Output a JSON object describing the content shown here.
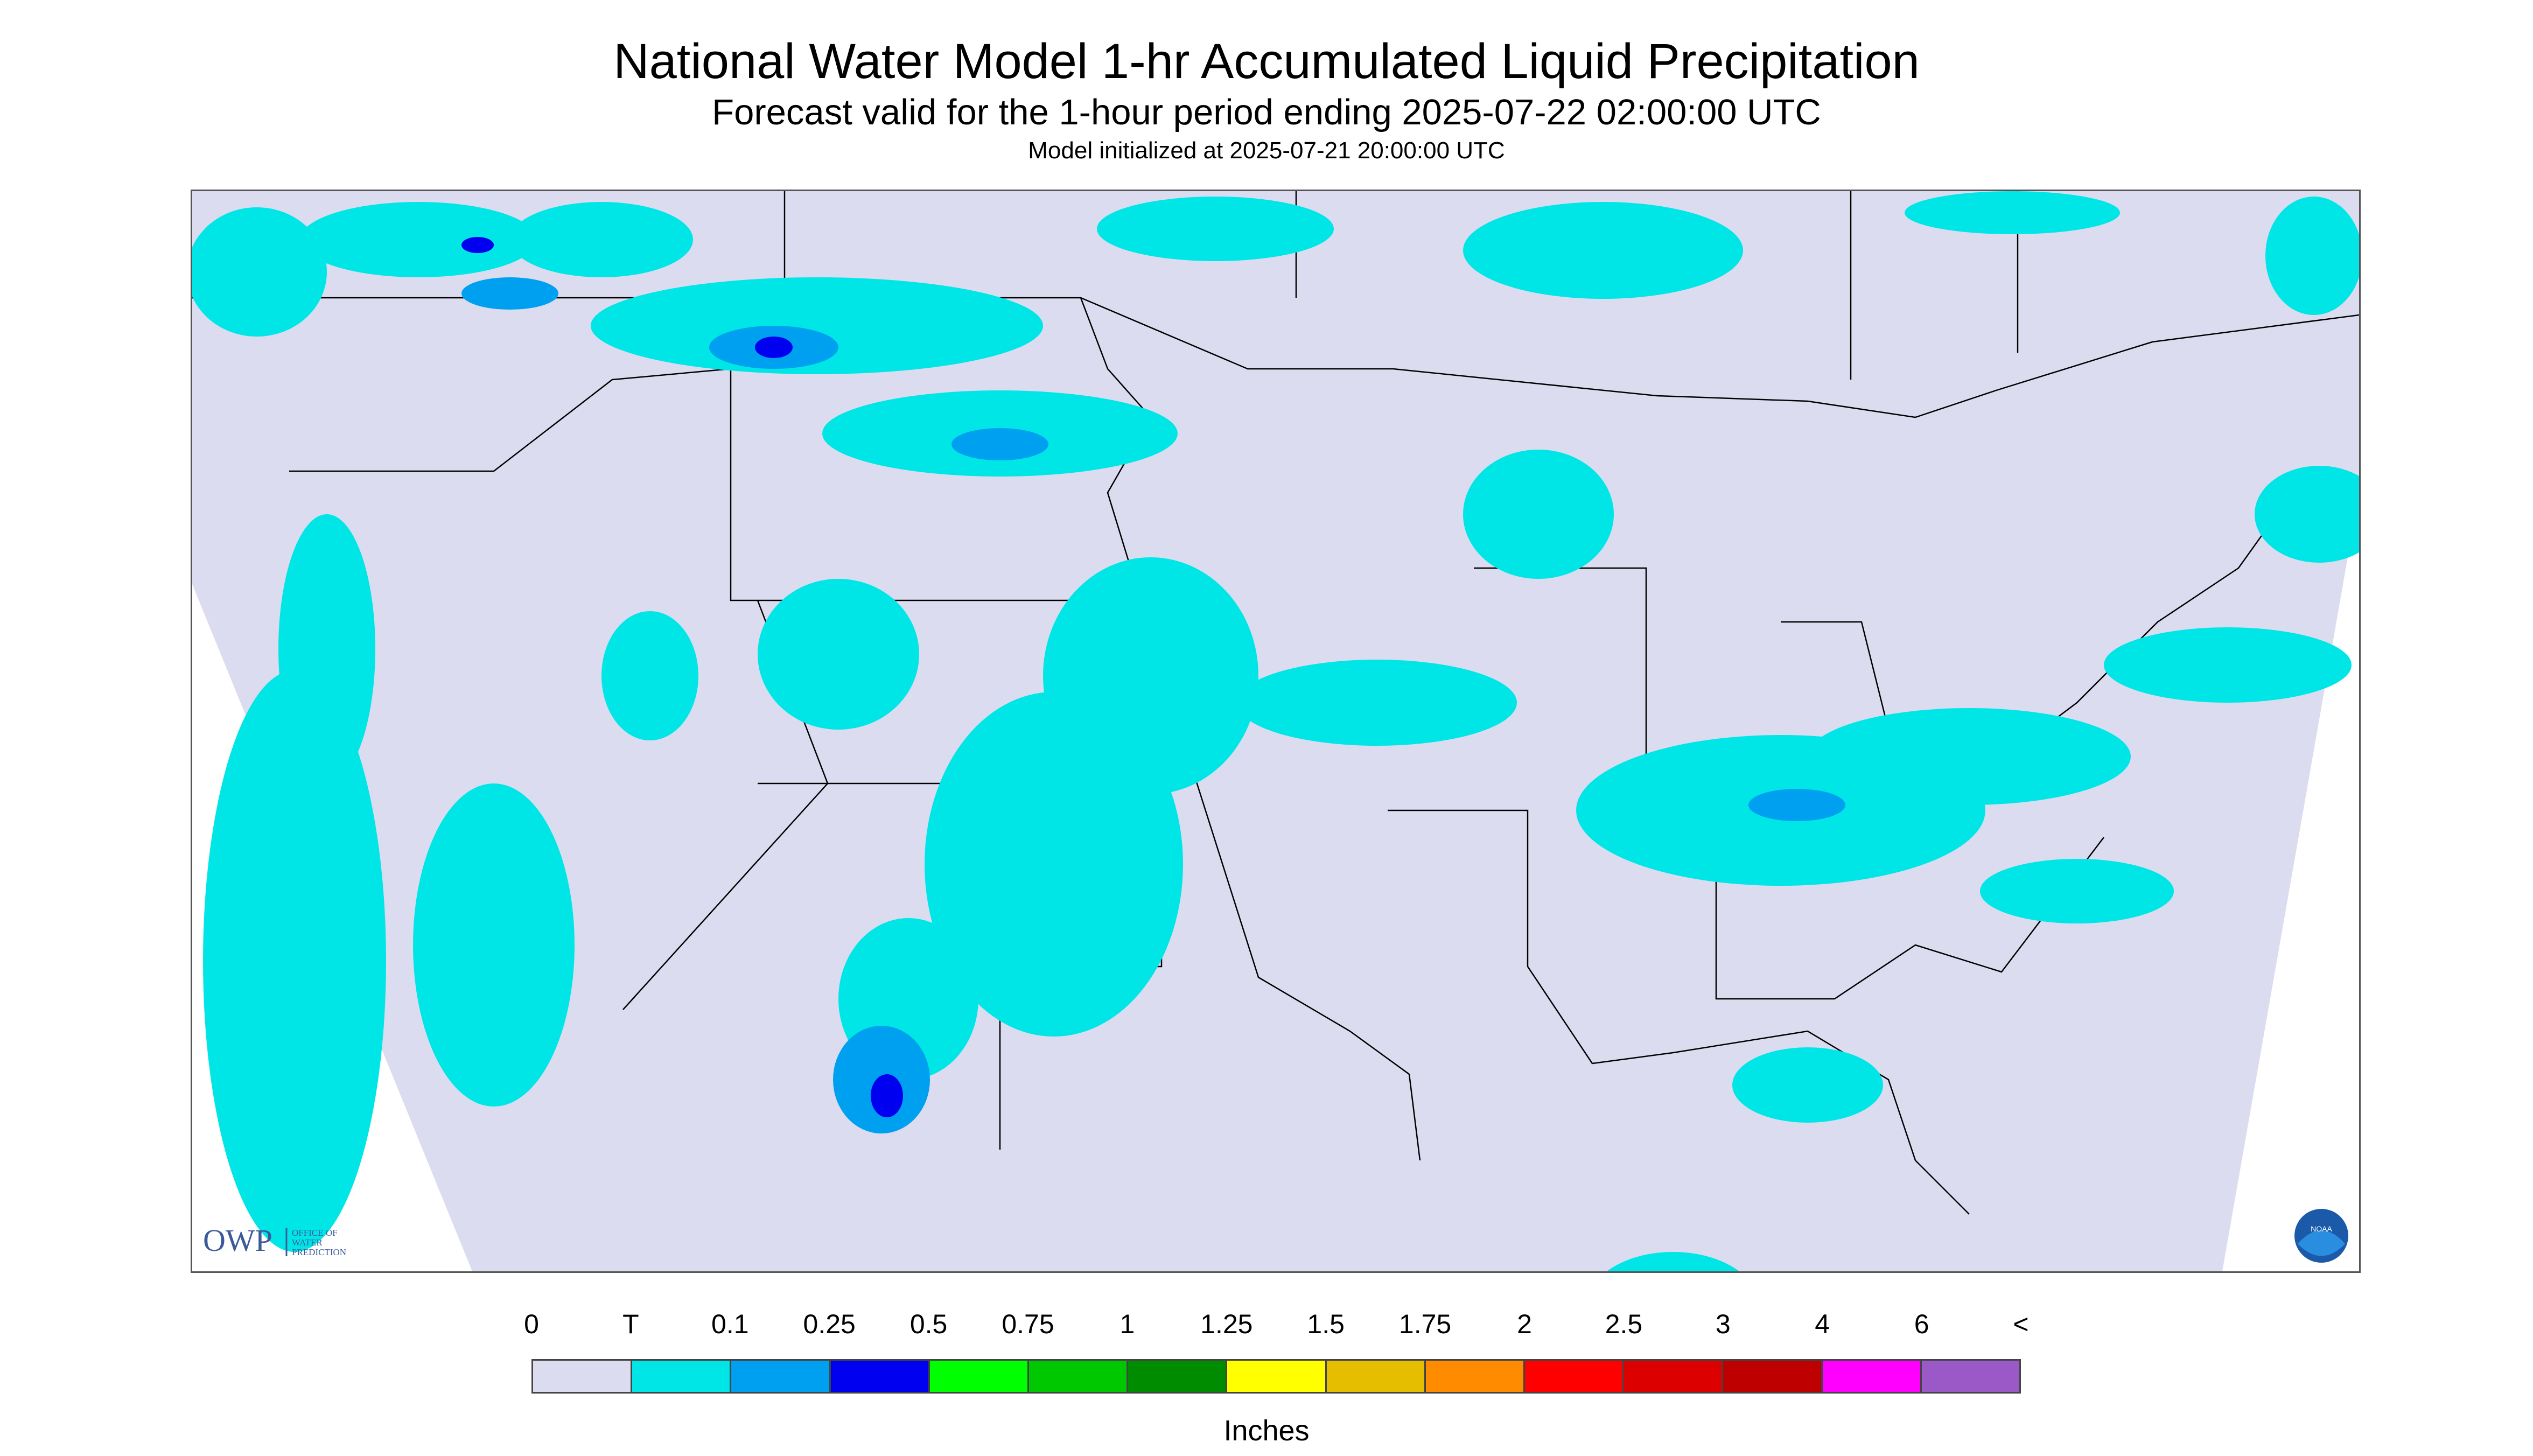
{
  "header": {
    "title": "National Water Model 1-hr Accumulated Liquid Precipitation",
    "subtitle": "Forecast valid for the 1-hour period ending 2025-07-22 02:00:00 UTC",
    "init_line": "Model initialized at 2025-07-21 20:00:00 UTC"
  },
  "map": {
    "region": "CONUS",
    "background_color": "#dcdcf0",
    "outside_domain_color": "#ffffff",
    "boundary_color": "#000000",
    "precip_color_trace": "#00e6e6",
    "icons": [
      "owp-logo",
      "noaa-logo"
    ]
  },
  "logos": {
    "owp_mark": "OWP",
    "owp_text": [
      "OFFICE OF",
      "WATER",
      "PREDICTION"
    ],
    "noaa_text": "NOAA"
  },
  "legend": {
    "units_label": "Inches",
    "ticks": [
      "0",
      "T",
      "0.1",
      "0.25",
      "0.5",
      "0.75",
      "1",
      "1.25",
      "1.5",
      "1.75",
      "2",
      "2.5",
      "3",
      "4",
      "6",
      "<"
    ],
    "colors": [
      "#dcdcf0",
      "#00e6e6",
      "#00a0f0",
      "#0000f0",
      "#00ff00",
      "#00c800",
      "#008c00",
      "#ffff00",
      "#e6be00",
      "#ff8c00",
      "#ff0000",
      "#dc0000",
      "#be0000",
      "#ff00ff",
      "#9b59c8"
    ]
  }
}
